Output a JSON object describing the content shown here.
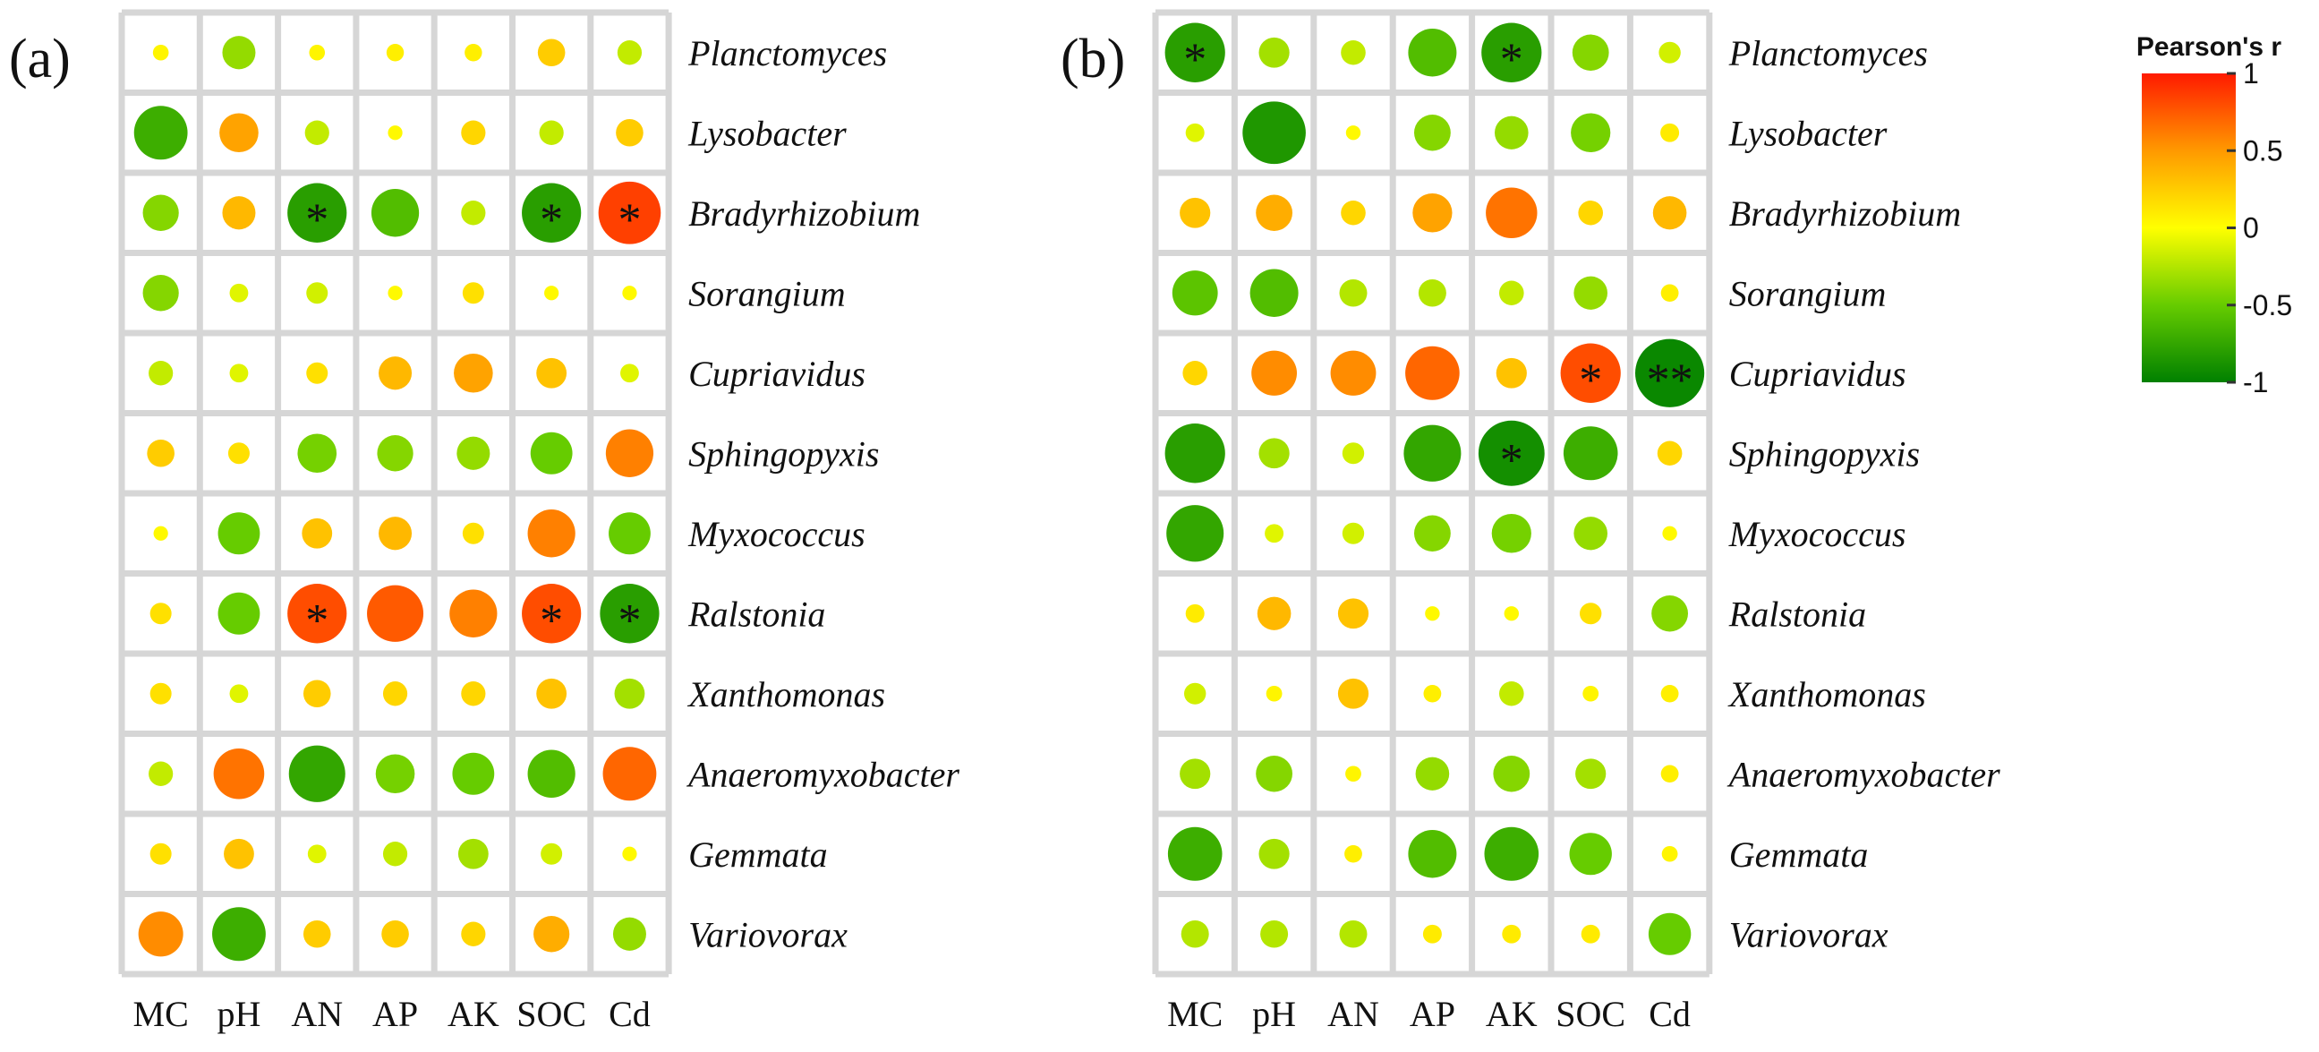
{
  "chart_data": [
    {
      "type": "heatmap",
      "panel_label": "(a)",
      "columns": [
        "MC",
        "pH",
        "AN",
        "AP",
        "AK",
        "SOC",
        "Cd"
      ],
      "rows": [
        "Planctomyces",
        "Lysobacter",
        "Bradyrhizobium",
        "Sorangium",
        "Cupriavidus",
        "Sphingopyxis",
        "Myxococcus",
        "Ralstonia",
        "Xanthomonas",
        "Anaeromyxobacter",
        "Gemmata",
        "Variovorax"
      ],
      "values": [
        [
          0.05,
          -0.35,
          0.05,
          0.08,
          0.08,
          0.25,
          -0.2
        ],
        [
          -0.7,
          0.45,
          -0.2,
          0.03,
          0.2,
          -0.2,
          0.25
        ],
        [
          -0.4,
          0.35,
          -0.8,
          -0.6,
          -0.2,
          -0.8,
          0.85
        ],
        [
          -0.4,
          -0.1,
          -0.15,
          0.03,
          0.15,
          0.03,
          0.03
        ],
        [
          -0.2,
          -0.1,
          0.15,
          0.35,
          0.45,
          0.3,
          -0.1
        ],
        [
          0.25,
          0.15,
          -0.45,
          -0.4,
          -0.35,
          -0.5,
          0.6
        ],
        [
          0.03,
          -0.5,
          0.3,
          0.35,
          0.15,
          0.6,
          -0.5
        ],
        [
          0.15,
          -0.5,
          0.8,
          0.75,
          0.6,
          0.8,
          -0.8
        ],
        [
          0.15,
          -0.1,
          0.25,
          0.2,
          0.2,
          0.3,
          -0.3
        ],
        [
          -0.2,
          0.65,
          -0.75,
          -0.45,
          -0.5,
          -0.6,
          0.7
        ],
        [
          0.15,
          0.3,
          -0.1,
          -0.2,
          -0.3,
          -0.15,
          0.03
        ],
        [
          0.55,
          -0.7,
          0.25,
          0.25,
          0.2,
          0.4,
          -0.35
        ]
      ],
      "significance": [
        [
          "",
          "",
          "",
          "",
          "",
          "",
          ""
        ],
        [
          "",
          "",
          "",
          "",
          "",
          "",
          ""
        ],
        [
          "",
          "",
          "*",
          "",
          "",
          "*",
          "*"
        ],
        [
          "",
          "",
          "",
          "",
          "",
          "",
          ""
        ],
        [
          "",
          "",
          "",
          "",
          "",
          "",
          ""
        ],
        [
          "",
          "",
          "",
          "",
          "",
          "",
          ""
        ],
        [
          "",
          "",
          "",
          "",
          "",
          "",
          ""
        ],
        [
          "",
          "",
          "*",
          "",
          "",
          "*",
          "*"
        ],
        [
          "",
          "",
          "",
          "",
          "",
          "",
          ""
        ],
        [
          "",
          "",
          "",
          "",
          "",
          "",
          ""
        ],
        [
          "",
          "",
          "",
          "",
          "",
          "",
          ""
        ],
        [
          "",
          "",
          "",
          "",
          "",
          "",
          ""
        ]
      ]
    },
    {
      "type": "heatmap",
      "panel_label": "(b)",
      "columns": [
        "MC",
        "pH",
        "AN",
        "AP",
        "AK",
        "SOC",
        "Cd"
      ],
      "rows": [
        "Planctomyces",
        "Lysobacter",
        "Bradyrhizobium",
        "Sorangium",
        "Cupriavidus",
        "Sphingopyxis",
        "Myxococcus",
        "Ralstonia",
        "Xanthomonas",
        "Anaeromyxobacter",
        "Gemmata",
        "Variovorax"
      ],
      "values": [
        [
          -0.8,
          -0.3,
          -0.2,
          -0.6,
          -0.8,
          -0.4,
          -0.15
        ],
        [
          -0.1,
          -0.85,
          0.03,
          -0.4,
          -0.35,
          -0.45,
          0.1
        ],
        [
          0.3,
          0.4,
          0.2,
          0.45,
          0.65,
          0.2,
          0.35
        ],
        [
          -0.55,
          -0.6,
          -0.25,
          -0.25,
          -0.2,
          -0.35,
          0.08
        ],
        [
          0.2,
          0.55,
          0.55,
          0.7,
          0.3,
          0.8,
          -0.95
        ],
        [
          -0.8,
          -0.3,
          -0.15,
          -0.75,
          -0.9,
          -0.7,
          0.2
        ],
        [
          -0.75,
          -0.1,
          -0.15,
          -0.4,
          -0.45,
          -0.35,
          0.03
        ],
        [
          0.1,
          0.35,
          0.3,
          0.03,
          0.03,
          0.15,
          -0.4
        ],
        [
          -0.15,
          0.05,
          0.3,
          0.08,
          -0.2,
          0.05,
          0.08
        ],
        [
          -0.3,
          -0.4,
          0.05,
          -0.35,
          -0.4,
          -0.3,
          0.08
        ],
        [
          -0.7,
          -0.3,
          0.08,
          -0.6,
          -0.7,
          -0.5,
          0.05
        ],
        [
          -0.25,
          -0.25,
          -0.25,
          0.1,
          0.1,
          0.1,
          -0.5
        ]
      ],
      "significance": [
        [
          "*",
          "",
          "",
          "",
          "*",
          "",
          ""
        ],
        [
          "",
          "",
          "",
          "",
          "",
          "",
          ""
        ],
        [
          "",
          "",
          "",
          "",
          "",
          "",
          ""
        ],
        [
          "",
          "",
          "",
          "",
          "",
          "",
          ""
        ],
        [
          "",
          "",
          "",
          "",
          "",
          "*",
          "**"
        ],
        [
          "",
          "",
          "",
          "",
          "*",
          "",
          ""
        ],
        [
          "",
          "",
          "",
          "",
          "",
          "",
          ""
        ],
        [
          "",
          "",
          "",
          "",
          "",
          "",
          ""
        ],
        [
          "",
          "",
          "",
          "",
          "",
          "",
          ""
        ],
        [
          "",
          "",
          "",
          "",
          "",
          "",
          ""
        ],
        [
          "",
          "",
          "",
          "",
          "",
          "",
          ""
        ],
        [
          "",
          "",
          "",
          "",
          "",
          "",
          ""
        ]
      ]
    }
  ],
  "legend": {
    "title": "Pearson's r",
    "range": [
      -1,
      1
    ],
    "ticks": [
      {
        "value": 1,
        "label": "1"
      },
      {
        "value": 0.5,
        "label": "0.5"
      },
      {
        "value": 0,
        "label": "0"
      },
      {
        "value": -0.5,
        "label": "-0.5"
      },
      {
        "value": -1,
        "label": "-1"
      }
    ],
    "colors": {
      "high": "#ff1a00",
      "mid_high": "#ff9900",
      "zero": "#ffff00",
      "mid_low": "#66cc00",
      "low": "#008000"
    }
  }
}
